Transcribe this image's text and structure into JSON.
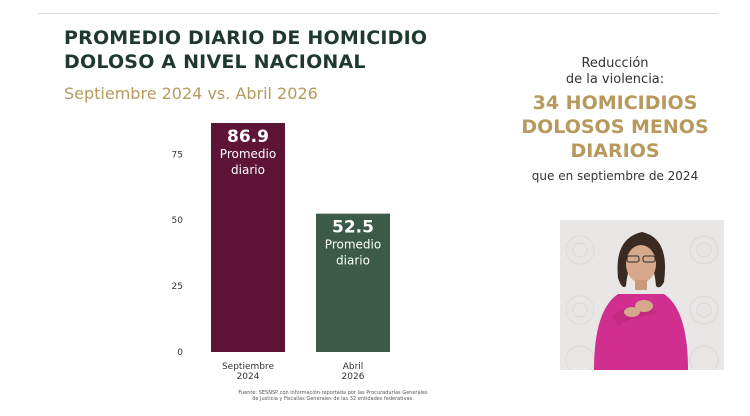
{
  "slide": {
    "title_line1": "PROMEDIO DIARIO DE HOMICIDIO",
    "title_line2": "DOLOSO A NIVEL NACIONAL",
    "subtitle": "Septiembre 2024 vs. Abril 2026",
    "source_note": "Fuente: SESNSP con información reportada por las Procuradurías Generales de Justicia y Fiscalías Generales de las 32 entidades federativas."
  },
  "callout": {
    "lead_line1": "Reducción",
    "lead_line2": "de la violencia:",
    "big_line1": "34 HOMICIDIOS",
    "big_line2": "DOLOSOS MENOS",
    "big_line3": "DIARIOS",
    "tail": "que en septiembre de 2024"
  },
  "chart_data": {
    "type": "bar",
    "categories": [
      [
        "Septiembre",
        "2024"
      ],
      [
        "Abril",
        "2026"
      ]
    ],
    "values": [
      86.9,
      52.5
    ],
    "value_labels": [
      "86.9",
      "52.5"
    ],
    "bar_sublabels": [
      [
        "Promedio",
        "diario"
      ],
      [
        "Promedio",
        "diario"
      ]
    ],
    "colors": [
      "#5e1434",
      "#3b5a48"
    ],
    "yticks": [
      0,
      25,
      50,
      75
    ],
    "ylim": [
      0,
      86.9
    ],
    "grid": false
  },
  "colors": {
    "title": "#1f3a2c",
    "accent_gold": "#b7995e",
    "interpreter_sweater": "#d12f8f"
  }
}
